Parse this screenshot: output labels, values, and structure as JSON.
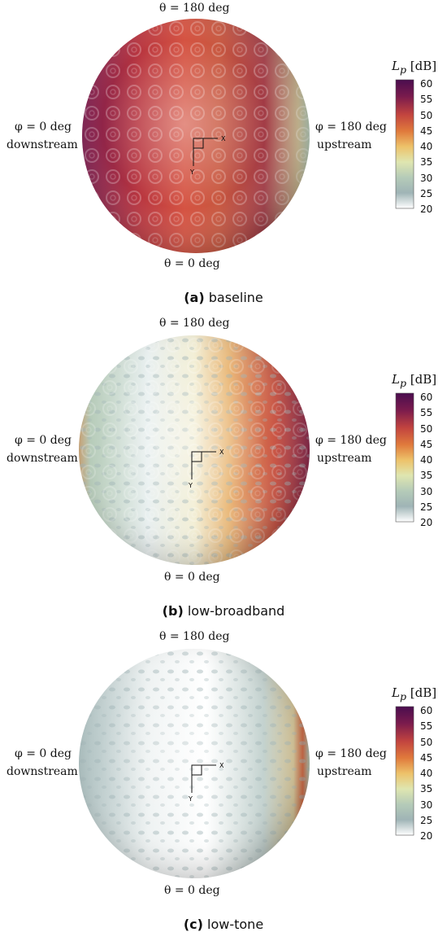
{
  "panels": [
    {
      "id": "a",
      "theta_top": "θ = 180 deg",
      "theta_bottom": "θ = 0 deg",
      "phi_left": "φ = 0 deg",
      "left_side": "downstream",
      "phi_right": "φ = 180 deg",
      "right_side": "upstream",
      "caption_letter": "(a)",
      "caption_text": " baseline",
      "colorbar_title": "L_p [dB]",
      "colorbar_ticks": [
        "60",
        "55",
        "50",
        "45",
        "40",
        "35",
        "30",
        "25",
        "20"
      ],
      "axis_x": "X",
      "axis_y": "Y"
    },
    {
      "id": "b",
      "theta_top": "θ = 180 deg",
      "theta_bottom": "θ = 0 deg",
      "phi_left": "φ = 0 deg",
      "left_side": "downstream",
      "phi_right": "φ = 180 deg",
      "right_side": "upstream",
      "caption_letter": "(b)",
      "caption_text": " low-broadband",
      "colorbar_title": "L_p [dB]",
      "colorbar_ticks": [
        "60",
        "55",
        "50",
        "45",
        "40",
        "35",
        "30",
        "25",
        "20"
      ],
      "axis_x": "X",
      "axis_y": "Y"
    },
    {
      "id": "c",
      "theta_top": "θ = 180 deg",
      "theta_bottom": "θ = 0 deg",
      "phi_left": "φ = 0 deg",
      "left_side": "downstream",
      "phi_right": "φ = 180 deg",
      "right_side": "upstream",
      "caption_letter": "(c)",
      "caption_text": " low-tone",
      "colorbar_title": "L_p [dB]",
      "colorbar_ticks": [
        "60",
        "55",
        "50",
        "45",
        "40",
        "35",
        "30",
        "25",
        "20"
      ],
      "axis_x": "X",
      "axis_y": "Y"
    }
  ],
  "colors": {
    "c60": "#4a0d4f",
    "c55": "#7a1b4d",
    "c50": "#c2443f",
    "c45": "#e07a3c",
    "c40": "#edc26a",
    "c35": "#dfe6b0",
    "c30": "#b5cbb8",
    "c25": "#9fb4b6",
    "c20": "#ffffff"
  }
}
